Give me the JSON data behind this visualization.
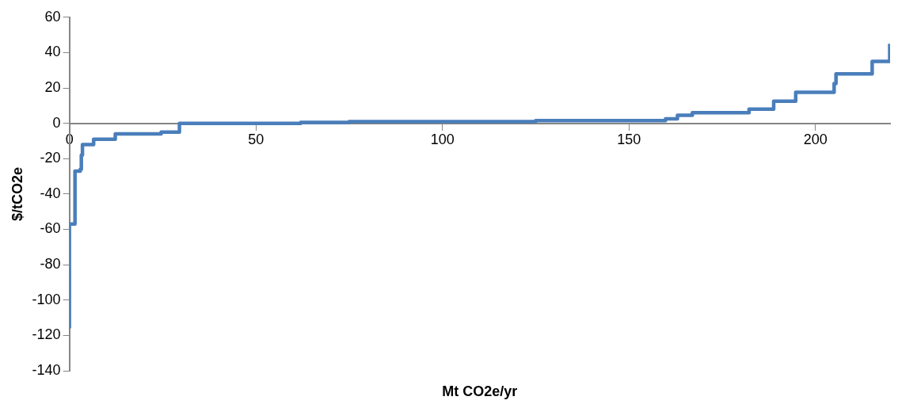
{
  "chart_data": {
    "type": "step",
    "xlabel": "Mt CO2e/yr",
    "ylabel": "$/tCO2e",
    "x": [
      0,
      0,
      1.5,
      2.9,
      3.2,
      3.5,
      6.5,
      12.3,
      24.6,
      29.5,
      62,
      75,
      125,
      159.8,
      163,
      167,
      182.2,
      188.8,
      194.7,
      205,
      205.5,
      215.2,
      219.9
    ],
    "series": [
      {
        "color": "#4a7ebb",
        "values": [
          -116,
          -57,
          -27,
          -26,
          -18,
          -12,
          -9,
          -6,
          -5,
          0,
          0.5,
          1,
          1.5,
          2.5,
          4.5,
          6,
          8,
          12.5,
          17.5,
          22.5,
          28,
          35,
          45
        ]
      }
    ],
    "xlim": [
      0,
      220
    ],
    "xticks": [
      0,
      50,
      100,
      150,
      200
    ],
    "ylim": [
      -140,
      60
    ],
    "yticks": [
      -140,
      -120,
      -100,
      -80,
      -60,
      -40,
      -20,
      0,
      20,
      40,
      60
    ],
    "grid": false,
    "legend": false,
    "marker": "none",
    "line_style": "solid"
  }
}
